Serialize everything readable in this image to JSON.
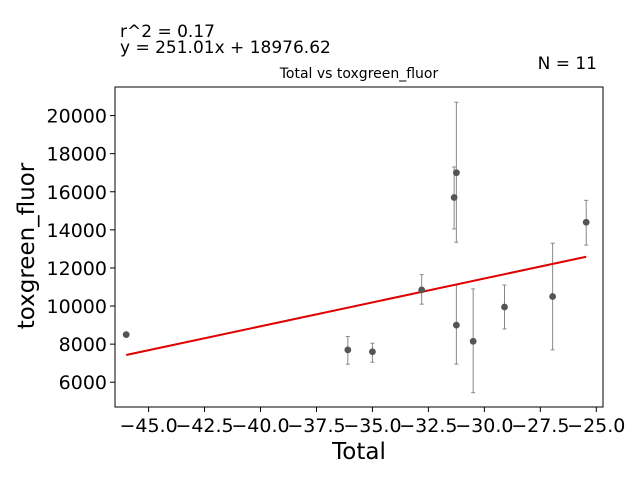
{
  "chart_data": {
    "type": "scatter",
    "title": "Total vs toxgreen_fluor",
    "xlabel": "Total",
    "ylabel": "toxgreen_fluor",
    "annotations": {
      "r2": "r^2 = 0.17",
      "equation": "y = 251.01x + 18976.62",
      "n": "N = 11"
    },
    "xlim": [
      -46.5,
      -24.7
    ],
    "ylim": [
      4700,
      21500
    ],
    "x_ticks": [
      -45.0,
      -42.5,
      -40.0,
      -37.5,
      -35.0,
      -32.5,
      -30.0,
      -27.5,
      -25.0
    ],
    "x_tick_labels": [
      "−45.0",
      "−42.5",
      "−40.0",
      "−37.5",
      "−35.0",
      "−32.5",
      "−30.0",
      "−27.5",
      "−25.0"
    ],
    "y_ticks": [
      6000,
      8000,
      10000,
      12000,
      14000,
      16000,
      18000,
      20000
    ],
    "y_tick_labels": [
      "6000",
      "8000",
      "10000",
      "12000",
      "14000",
      "16000",
      "18000",
      "20000"
    ],
    "points": [
      {
        "x": -46.0,
        "y": 8500,
        "err_low": null,
        "err_high": null
      },
      {
        "x": -36.1,
        "y": 7700,
        "err_low": 6950,
        "err_high": 8400
      },
      {
        "x": -35.0,
        "y": 7600,
        "err_low": 7050,
        "err_high": 8050
      },
      {
        "x": -32.8,
        "y": 10850,
        "err_low": 10100,
        "err_high": 11650
      },
      {
        "x": -31.35,
        "y": 15700,
        "err_low": 14050,
        "err_high": 17300
      },
      {
        "x": -31.25,
        "y": 17000,
        "err_low": 13350,
        "err_high": 20700
      },
      {
        "x": -31.25,
        "y": 9000,
        "err_low": 6950,
        "err_high": 11100
      },
      {
        "x": -30.5,
        "y": 8150,
        "err_low": 5450,
        "err_high": 10900
      },
      {
        "x": -29.1,
        "y": 9950,
        "err_low": 8800,
        "err_high": 11100
      },
      {
        "x": -26.95,
        "y": 10500,
        "err_low": 7700,
        "err_high": 13300
      },
      {
        "x": -25.45,
        "y": 14400,
        "err_low": 13200,
        "err_high": 15550
      }
    ],
    "fit": {
      "slope": 251.01,
      "intercept": 18976.62,
      "x_range": [
        -46.0,
        -25.45
      ]
    },
    "colors": {
      "points": "#555555",
      "fit": "#e00000",
      "errorbars": "#888888",
      "axes": "#000000"
    },
    "grid": false
  }
}
